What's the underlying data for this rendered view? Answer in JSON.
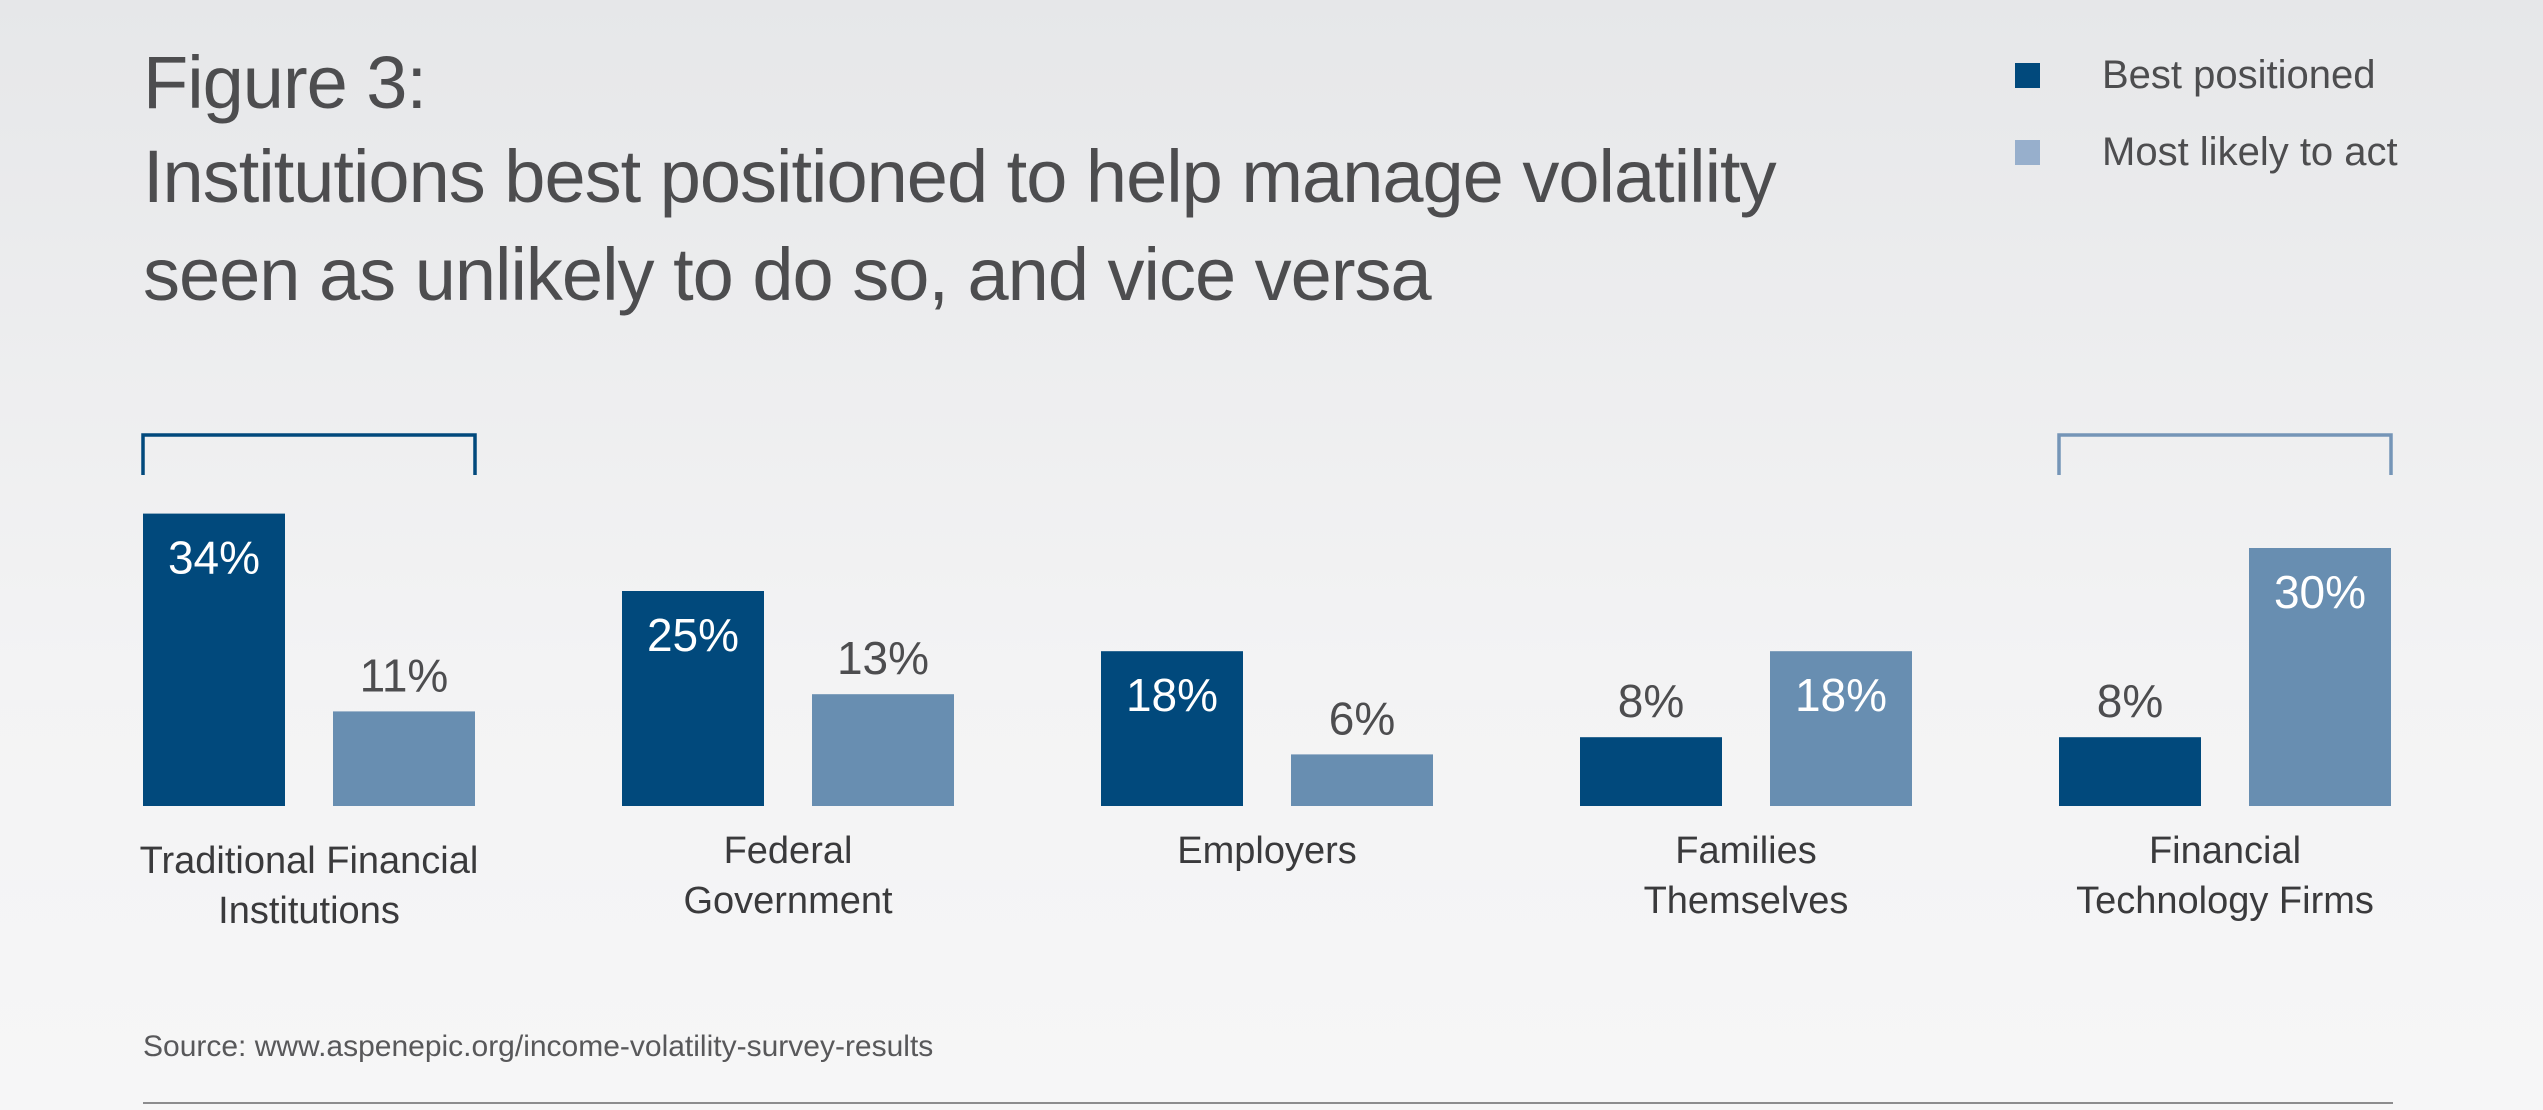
{
  "figure_label": "Figure 3:",
  "title": "Institutions best positioned to help manage volatility seen as unlikely to do so, and vice versa",
  "legend": [
    {
      "name": "Best positioned",
      "color": "#01497c"
    },
    {
      "name": "Most likely to act",
      "color": "#97afcc"
    }
  ],
  "source": "Source: www.aspenepic.org/income-volatility-survey-results",
  "colors": {
    "best_positioned_bar": "#01497c",
    "most_likely_bar": "#688eb1",
    "bracket_dark": "#01497c",
    "bracket_light": "#7595b7",
    "value_label_inside": "#ffffff",
    "value_label_outside": "#4d4d4f",
    "category_label": "#3a3a3c"
  },
  "chart_data": {
    "type": "bar",
    "categories": [
      [
        "Traditional Financial",
        "Institutions"
      ],
      [
        "Federal",
        "Government"
      ],
      [
        "Employers"
      ],
      [
        "Families",
        "Themselves"
      ],
      [
        "Financial",
        "Technology Firms"
      ]
    ],
    "series": [
      {
        "name": "Best positioned",
        "values": [
          34,
          25,
          18,
          8,
          8
        ]
      },
      {
        "name": "Most likely to act",
        "values": [
          11,
          13,
          6,
          18,
          30
        ]
      }
    ],
    "value_labels": [
      [
        "34%",
        "25%",
        "18%",
        "8%",
        "8%"
      ],
      [
        "11%",
        "13%",
        "6%",
        "18%",
        "30%"
      ]
    ],
    "highlighted_categories": [
      0,
      4
    ],
    "ylim": [
      0,
      36
    ],
    "xlabel": "",
    "ylabel": "",
    "grid": false,
    "legend_position": "top-right"
  }
}
